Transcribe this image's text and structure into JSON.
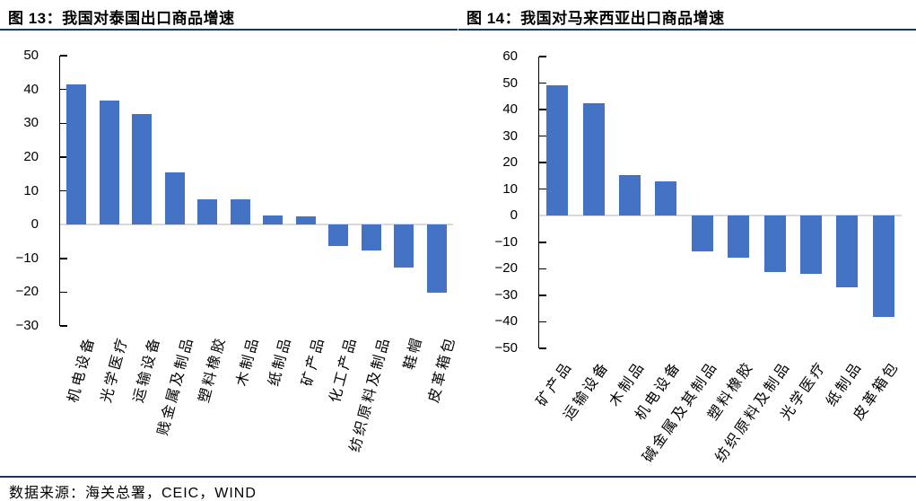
{
  "footer": {
    "source_text": "数据来源：海关总署，CEIC，WIND"
  },
  "colors": {
    "background": "#FFFFFF",
    "bar": "#4472C4",
    "zero_line": "#D9D9D9",
    "axis": "#000000",
    "title_underline": "#17365D",
    "footer_line": "#17365D",
    "text": "#000000"
  },
  "chart_data": [
    {
      "type": "bar",
      "title": "图 13：我国对泰国出口商品增速",
      "categories": [
        "机电设备",
        "光学医疗",
        "运输设备",
        "贱金属及制品",
        "塑料橡胶",
        "木制品",
        "纸制品",
        "矿产品",
        "化工产品",
        "纺织原料及制品",
        "鞋帽",
        "皮革箱包"
      ],
      "values": [
        41.6,
        36.6,
        32.6,
        15.5,
        7.6,
        7.4,
        2.6,
        2.5,
        -6.4,
        -7.7,
        -12.8,
        -20.2
      ],
      "xlabel": "",
      "ylabel": "",
      "ylim": [
        -30,
        50
      ],
      "yticks": [
        50,
        40,
        30,
        20,
        10,
        0,
        -10,
        -20,
        -30
      ],
      "grid": false,
      "legend": false
    },
    {
      "type": "bar",
      "title": "图 14：我国对马来西亚出口商品增速",
      "categories": [
        "矿产品",
        "运输设备",
        "木制品",
        "机电设备",
        "碱金属及其制品",
        "塑料橡胶",
        "纺织原料及制品",
        "光学医疗",
        "纸制品",
        "皮革箱包"
      ],
      "values": [
        49.1,
        42.5,
        15.3,
        12.9,
        -13.5,
        -15.9,
        -21.3,
        -22.0,
        -27.1,
        -38.2
      ],
      "xlabel": "",
      "ylabel": "",
      "ylim": [
        -50,
        60
      ],
      "yticks": [
        60,
        50,
        40,
        30,
        20,
        10,
        0,
        -10,
        -20,
        -30,
        -40,
        -50
      ],
      "grid": false,
      "legend": false
    }
  ]
}
